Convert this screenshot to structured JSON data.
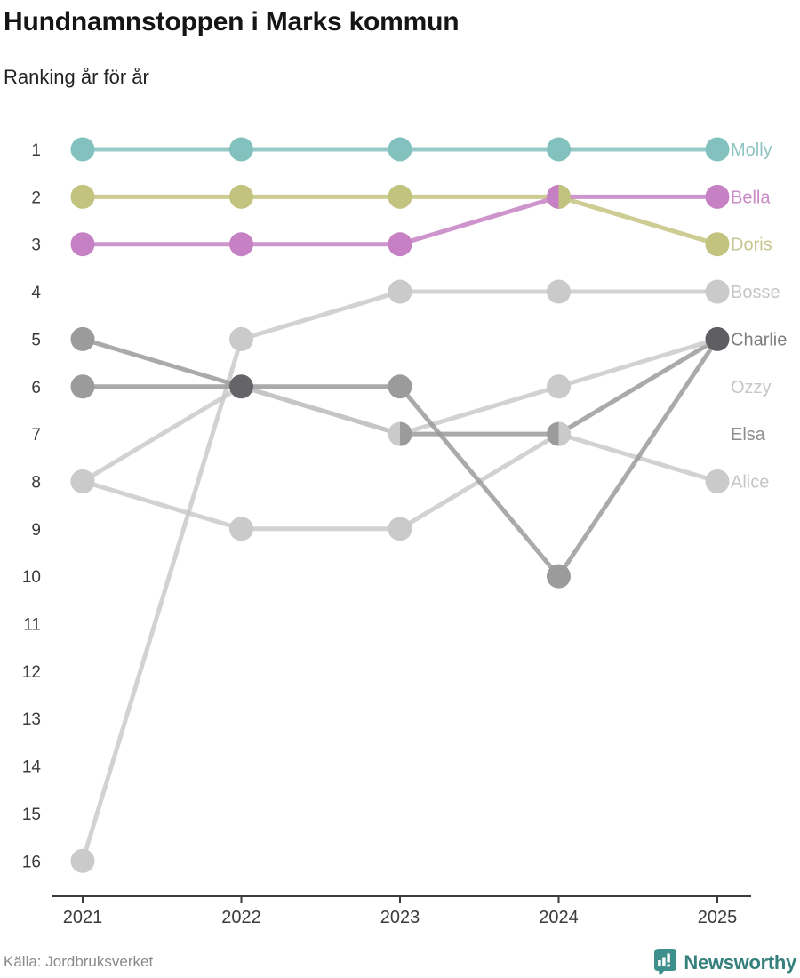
{
  "header": {
    "title": "Hundnamnstoppen i Marks kommun",
    "subtitle": "Ranking år för år"
  },
  "footer": {
    "source": "Källa: Jordbruksverket",
    "brand": "Newsworthy"
  },
  "chart_data": {
    "type": "line",
    "subtype": "bump-ranking",
    "x_ticks": [
      "2021",
      "2022",
      "2023",
      "2024",
      "2025"
    ],
    "rank_ticks": [
      "1",
      "2",
      "3",
      "4",
      "5",
      "6",
      "7",
      "8",
      "9",
      "10",
      "11",
      "12",
      "13",
      "14",
      "15",
      "16"
    ],
    "ylim": [
      1,
      16
    ],
    "grid": false,
    "legend_position": "right-labels",
    "series": [
      {
        "name": "Bosse",
        "values": [
          16,
          5,
          4,
          4,
          4
        ],
        "dot_color": "#cacaca",
        "label_color": "#c6c6c6",
        "label_rank": 4
      },
      {
        "name": "Alice",
        "values": [
          8,
          9,
          9,
          7,
          8
        ],
        "dot_color": "#cacaca",
        "label_color": "#c6c6c6",
        "label_rank": 8
      },
      {
        "name": "Elsa",
        "values": [
          6,
          6,
          7,
          7,
          5
        ],
        "dot_color": "#9b9b9b",
        "label_color": "#8d8d8d",
        "label_rank": 7
      },
      {
        "name": "Ozzy",
        "values": [
          8,
          6,
          7,
          6,
          5
        ],
        "dot_color": "#cacaca",
        "label_color": "#c6c6c6",
        "label_rank": 6
      },
      {
        "name": "Charlie",
        "values": [
          5,
          6,
          6,
          10,
          5
        ],
        "dot_color": "#9b9b9b",
        "label_color": "#7e7e7e",
        "label_rank": 5
      },
      {
        "name": "Doris",
        "values": [
          2,
          2,
          2,
          2,
          3
        ],
        "dot_color": "#c3c380",
        "label_color": "#c6c68e",
        "label_rank": 3
      },
      {
        "name": "Bella",
        "values": [
          3,
          3,
          3,
          2,
          2
        ],
        "dot_color": "#c581c3",
        "label_color": "#ca8bc6",
        "label_rank": 2
      },
      {
        "name": "Molly",
        "values": [
          1,
          1,
          1,
          1,
          1
        ],
        "dot_color": "#83c1be",
        "label_color": "#8ec5c2",
        "label_rank": 1
      }
    ],
    "tie_dot_overrides": [
      {
        "x_index": 1,
        "rank": 6,
        "kind": "dark",
        "color": "#646469"
      },
      {
        "x_index": 2,
        "rank": 7,
        "kind": "split",
        "left": "#cacaca",
        "right": "#9b9b9b"
      },
      {
        "x_index": 3,
        "rank": 2,
        "kind": "split",
        "left": "#c581c3",
        "right": "#c3c380"
      },
      {
        "x_index": 3,
        "rank": 7,
        "kind": "split",
        "left": "#9b9b9b",
        "right": "#cacaca"
      },
      {
        "x_index": 4,
        "rank": 5,
        "kind": "dark",
        "color": "#5e5e63"
      }
    ],
    "axis_color": "#3a3a3a",
    "tick_label_color": "#3b3b3b"
  }
}
